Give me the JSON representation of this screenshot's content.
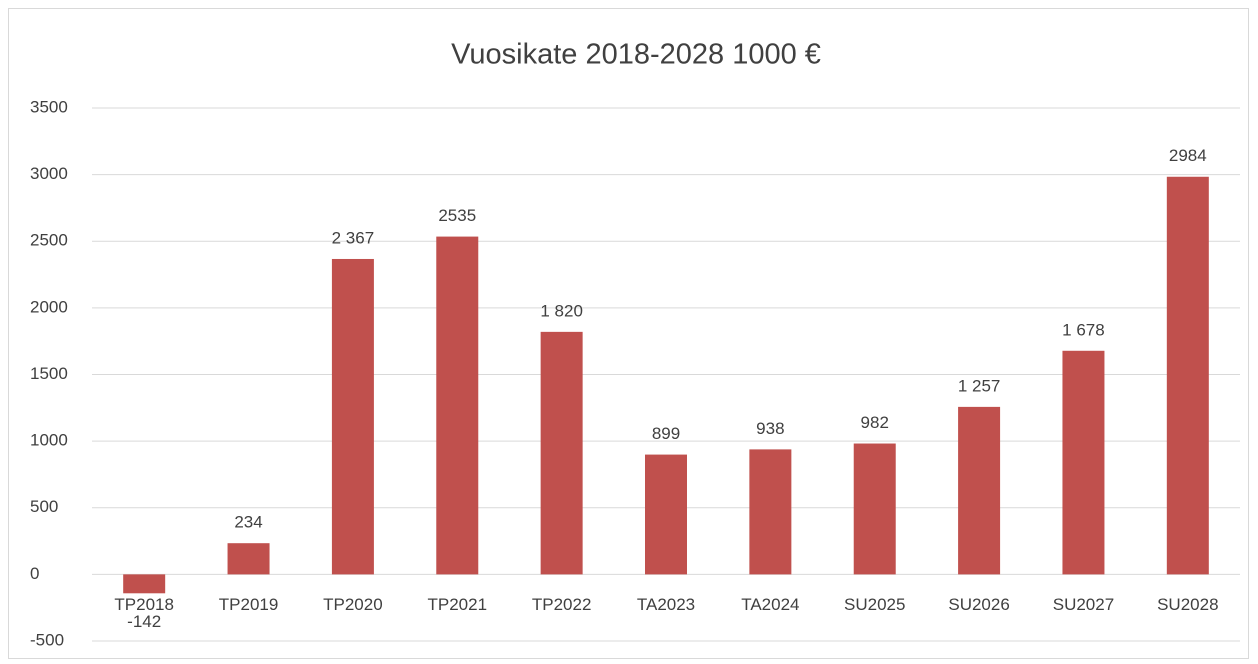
{
  "chart_data": {
    "type": "bar",
    "title": "Vuosikate 2018-2028 1000 €",
    "categories": [
      "TP2018",
      "TP2019",
      "TP2020",
      "TP2021",
      "TP2022",
      "TA2023",
      "TA2024",
      "SU2025",
      "SU2026",
      "SU2027",
      "SU2028"
    ],
    "values": [
      -142,
      234,
      2367,
      2535,
      1820,
      899,
      938,
      982,
      1257,
      1678,
      2984
    ],
    "value_labels": [
      "-142",
      "234",
      "2 367",
      "2535",
      "1 820",
      "899",
      "938",
      "982",
      "1 257",
      "1 678",
      "2984"
    ],
    "color": "#c0504d",
    "ylim": [
      -500,
      3500
    ],
    "yticks": [
      -500,
      0,
      500,
      1000,
      1500,
      2000,
      2500,
      3000,
      3500
    ],
    "grid": true
  }
}
